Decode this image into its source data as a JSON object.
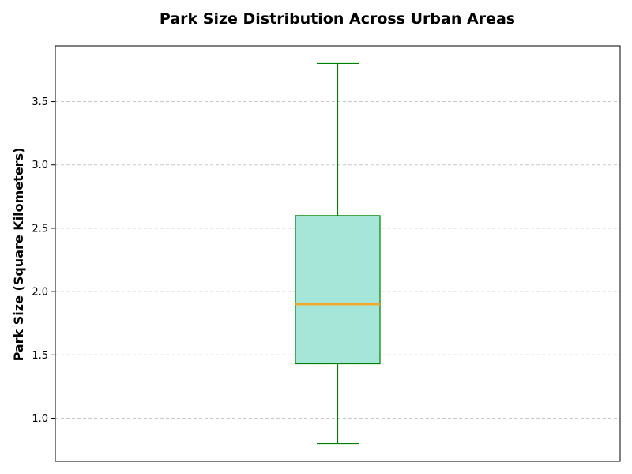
{
  "chart_data": {
    "type": "box",
    "title": "Park Size Distribution Across Urban Areas",
    "xlabel": "",
    "ylabel": "Park Size (Square Kilometers)",
    "ylim": [
      0.66,
      3.94
    ],
    "yticks": [
      1.0,
      1.5,
      2.0,
      2.5,
      3.0,
      3.5
    ],
    "ytick_labels": [
      "1.0",
      "1.5",
      "2.0",
      "2.5",
      "3.0",
      "3.5"
    ],
    "grid": {
      "y": true,
      "x": false,
      "style": "dashed"
    },
    "boxes": [
      {
        "whisker_low": 0.8,
        "q1": 1.43,
        "median": 1.9,
        "q3": 2.6,
        "whisker_high": 3.8
      }
    ],
    "colors": {
      "box_fill": "#a6e6d9",
      "box_edge": "#008000",
      "median": "#f5a623",
      "whisker": "#008000",
      "grid": "#c8c8c8",
      "axes": "#000000"
    }
  }
}
